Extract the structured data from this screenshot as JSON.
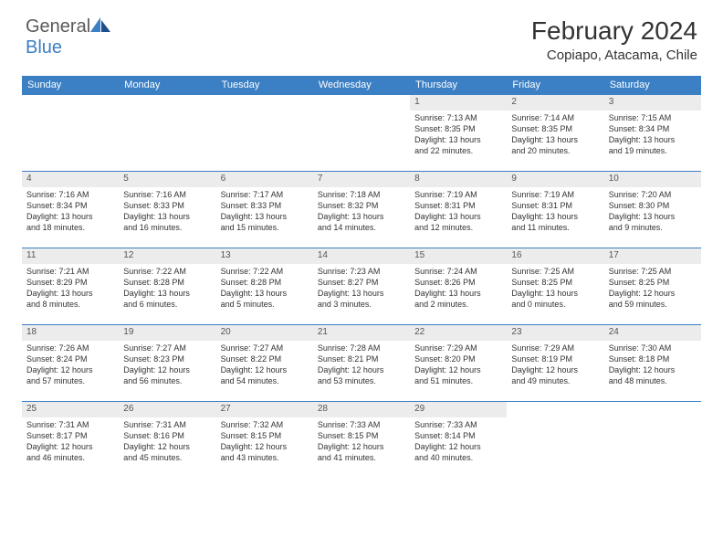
{
  "brand": {
    "part1": "General",
    "part2": "Blue"
  },
  "title": "February 2024",
  "location": "Copiapo, Atacama, Chile",
  "dayHeaders": [
    "Sunday",
    "Monday",
    "Tuesday",
    "Wednesday",
    "Thursday",
    "Friday",
    "Saturday"
  ],
  "colors": {
    "headerBar": "#3b7fc4",
    "dayNumBg": "#ececec",
    "text": "#333333",
    "logoGray": "#5a5a5a",
    "logoBlue": "#3b7fc4"
  },
  "weeks": [
    [
      null,
      null,
      null,
      null,
      {
        "n": "1",
        "sr": "Sunrise: 7:13 AM",
        "ss": "Sunset: 8:35 PM",
        "d1": "Daylight: 13 hours",
        "d2": "and 22 minutes."
      },
      {
        "n": "2",
        "sr": "Sunrise: 7:14 AM",
        "ss": "Sunset: 8:35 PM",
        "d1": "Daylight: 13 hours",
        "d2": "and 20 minutes."
      },
      {
        "n": "3",
        "sr": "Sunrise: 7:15 AM",
        "ss": "Sunset: 8:34 PM",
        "d1": "Daylight: 13 hours",
        "d2": "and 19 minutes."
      }
    ],
    [
      {
        "n": "4",
        "sr": "Sunrise: 7:16 AM",
        "ss": "Sunset: 8:34 PM",
        "d1": "Daylight: 13 hours",
        "d2": "and 18 minutes."
      },
      {
        "n": "5",
        "sr": "Sunrise: 7:16 AM",
        "ss": "Sunset: 8:33 PM",
        "d1": "Daylight: 13 hours",
        "d2": "and 16 minutes."
      },
      {
        "n": "6",
        "sr": "Sunrise: 7:17 AM",
        "ss": "Sunset: 8:33 PM",
        "d1": "Daylight: 13 hours",
        "d2": "and 15 minutes."
      },
      {
        "n": "7",
        "sr": "Sunrise: 7:18 AM",
        "ss": "Sunset: 8:32 PM",
        "d1": "Daylight: 13 hours",
        "d2": "and 14 minutes."
      },
      {
        "n": "8",
        "sr": "Sunrise: 7:19 AM",
        "ss": "Sunset: 8:31 PM",
        "d1": "Daylight: 13 hours",
        "d2": "and 12 minutes."
      },
      {
        "n": "9",
        "sr": "Sunrise: 7:19 AM",
        "ss": "Sunset: 8:31 PM",
        "d1": "Daylight: 13 hours",
        "d2": "and 11 minutes."
      },
      {
        "n": "10",
        "sr": "Sunrise: 7:20 AM",
        "ss": "Sunset: 8:30 PM",
        "d1": "Daylight: 13 hours",
        "d2": "and 9 minutes."
      }
    ],
    [
      {
        "n": "11",
        "sr": "Sunrise: 7:21 AM",
        "ss": "Sunset: 8:29 PM",
        "d1": "Daylight: 13 hours",
        "d2": "and 8 minutes."
      },
      {
        "n": "12",
        "sr": "Sunrise: 7:22 AM",
        "ss": "Sunset: 8:28 PM",
        "d1": "Daylight: 13 hours",
        "d2": "and 6 minutes."
      },
      {
        "n": "13",
        "sr": "Sunrise: 7:22 AM",
        "ss": "Sunset: 8:28 PM",
        "d1": "Daylight: 13 hours",
        "d2": "and 5 minutes."
      },
      {
        "n": "14",
        "sr": "Sunrise: 7:23 AM",
        "ss": "Sunset: 8:27 PM",
        "d1": "Daylight: 13 hours",
        "d2": "and 3 minutes."
      },
      {
        "n": "15",
        "sr": "Sunrise: 7:24 AM",
        "ss": "Sunset: 8:26 PM",
        "d1": "Daylight: 13 hours",
        "d2": "and 2 minutes."
      },
      {
        "n": "16",
        "sr": "Sunrise: 7:25 AM",
        "ss": "Sunset: 8:25 PM",
        "d1": "Daylight: 13 hours",
        "d2": "and 0 minutes."
      },
      {
        "n": "17",
        "sr": "Sunrise: 7:25 AM",
        "ss": "Sunset: 8:25 PM",
        "d1": "Daylight: 12 hours",
        "d2": "and 59 minutes."
      }
    ],
    [
      {
        "n": "18",
        "sr": "Sunrise: 7:26 AM",
        "ss": "Sunset: 8:24 PM",
        "d1": "Daylight: 12 hours",
        "d2": "and 57 minutes."
      },
      {
        "n": "19",
        "sr": "Sunrise: 7:27 AM",
        "ss": "Sunset: 8:23 PM",
        "d1": "Daylight: 12 hours",
        "d2": "and 56 minutes."
      },
      {
        "n": "20",
        "sr": "Sunrise: 7:27 AM",
        "ss": "Sunset: 8:22 PM",
        "d1": "Daylight: 12 hours",
        "d2": "and 54 minutes."
      },
      {
        "n": "21",
        "sr": "Sunrise: 7:28 AM",
        "ss": "Sunset: 8:21 PM",
        "d1": "Daylight: 12 hours",
        "d2": "and 53 minutes."
      },
      {
        "n": "22",
        "sr": "Sunrise: 7:29 AM",
        "ss": "Sunset: 8:20 PM",
        "d1": "Daylight: 12 hours",
        "d2": "and 51 minutes."
      },
      {
        "n": "23",
        "sr": "Sunrise: 7:29 AM",
        "ss": "Sunset: 8:19 PM",
        "d1": "Daylight: 12 hours",
        "d2": "and 49 minutes."
      },
      {
        "n": "24",
        "sr": "Sunrise: 7:30 AM",
        "ss": "Sunset: 8:18 PM",
        "d1": "Daylight: 12 hours",
        "d2": "and 48 minutes."
      }
    ],
    [
      {
        "n": "25",
        "sr": "Sunrise: 7:31 AM",
        "ss": "Sunset: 8:17 PM",
        "d1": "Daylight: 12 hours",
        "d2": "and 46 minutes."
      },
      {
        "n": "26",
        "sr": "Sunrise: 7:31 AM",
        "ss": "Sunset: 8:16 PM",
        "d1": "Daylight: 12 hours",
        "d2": "and 45 minutes."
      },
      {
        "n": "27",
        "sr": "Sunrise: 7:32 AM",
        "ss": "Sunset: 8:15 PM",
        "d1": "Daylight: 12 hours",
        "d2": "and 43 minutes."
      },
      {
        "n": "28",
        "sr": "Sunrise: 7:33 AM",
        "ss": "Sunset: 8:15 PM",
        "d1": "Daylight: 12 hours",
        "d2": "and 41 minutes."
      },
      {
        "n": "29",
        "sr": "Sunrise: 7:33 AM",
        "ss": "Sunset: 8:14 PM",
        "d1": "Daylight: 12 hours",
        "d2": "and 40 minutes."
      },
      null,
      null
    ]
  ]
}
